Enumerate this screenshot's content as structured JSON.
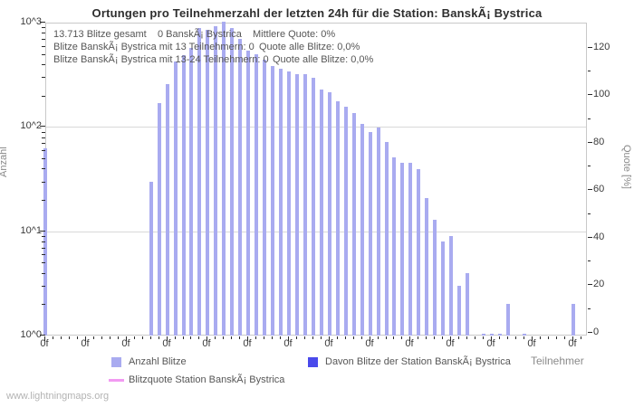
{
  "title": "Ortungen pro Teilnehmerzahl der letzten 24h für die Station: BanskÃ¡ Bystrica",
  "watermark": "www.lightningmaps.org",
  "annotations": {
    "line1": [
      "13.713 Blitze gesamt",
      "0 BanskÃ¡ Bystrica",
      "Mittlere Quote: 0%"
    ],
    "line2": [
      "Blitze BanskÃ¡ Bystrica mit 13 Teilnehmern: 0",
      "Quote alle Blitze: 0,0%"
    ],
    "line3": [
      "Blitze BanskÃ¡ Bystrica mit 13-24 Teilnehmern: 0",
      "Quote alle Blitze: 0,0%"
    ]
  },
  "chart_data": {
    "type": "bar",
    "title": "Ortungen pro Teilnehmerzahl der letzten 24h für die Station: BanskÃ¡ Bystrica",
    "x_axis": {
      "label": "Teilnehmer",
      "major_tick_label": "0f",
      "major_tick_count": 14,
      "minor_ticks_per_major": 5
    },
    "y_axis_left": {
      "label": "Anzahl",
      "scale": "log",
      "tick_labels": [
        "10^0",
        "10^1",
        "10^2",
        "10^3"
      ],
      "range": [
        1,
        1000
      ]
    },
    "y_axis_right": {
      "label": "Quote [%]",
      "tick_values": [
        0,
        20,
        40,
        60,
        80,
        100,
        120
      ],
      "minor_step": 10,
      "range": [
        0,
        128
      ]
    },
    "grid": "horizontal-decade-lines",
    "legend_position": "bottom",
    "series": [
      {
        "name": "Anzahl Blitze",
        "type": "bar",
        "color": "#a9abf0",
        "x_unit": "Teilnehmer",
        "points": [
          [
            0,
            62
          ],
          [
            13,
            30
          ],
          [
            14,
            168
          ],
          [
            15,
            255
          ],
          [
            16,
            422
          ],
          [
            17,
            483
          ],
          [
            18,
            571
          ],
          [
            19,
            885
          ],
          [
            20,
            856
          ],
          [
            21,
            916
          ],
          [
            22,
            1097
          ],
          [
            23,
            885
          ],
          [
            24,
            700
          ],
          [
            25,
            535
          ],
          [
            26,
            500
          ],
          [
            27,
            437
          ],
          [
            28,
            387
          ],
          [
            29,
            363
          ],
          [
            30,
            343
          ],
          [
            31,
            322
          ],
          [
            32,
            322
          ],
          [
            33,
            296
          ],
          [
            34,
            230
          ],
          [
            35,
            214
          ],
          [
            36,
            176
          ],
          [
            37,
            156
          ],
          [
            38,
            135
          ],
          [
            39,
            107
          ],
          [
            40,
            90
          ],
          [
            41,
            98
          ],
          [
            42,
            71
          ],
          [
            43,
            51
          ],
          [
            44,
            45
          ],
          [
            45,
            45
          ],
          [
            46,
            39
          ],
          [
            47,
            21
          ],
          [
            48,
            13
          ],
          [
            49,
            8
          ],
          [
            50,
            9
          ],
          [
            51,
            3
          ],
          [
            52,
            4
          ],
          [
            54,
            1
          ],
          [
            55,
            1
          ],
          [
            56,
            1
          ],
          [
            57,
            2
          ],
          [
            59,
            1
          ],
          [
            65,
            2
          ]
        ]
      },
      {
        "name": "Davon Blitze der Station BanskÃ¡ Bystrica",
        "type": "bar",
        "color": "#4a4aeb",
        "points": []
      },
      {
        "name": "Blitzquote Station BanskÃ¡ Bystrica",
        "type": "line",
        "color": "#f29af2",
        "points": []
      }
    ]
  }
}
